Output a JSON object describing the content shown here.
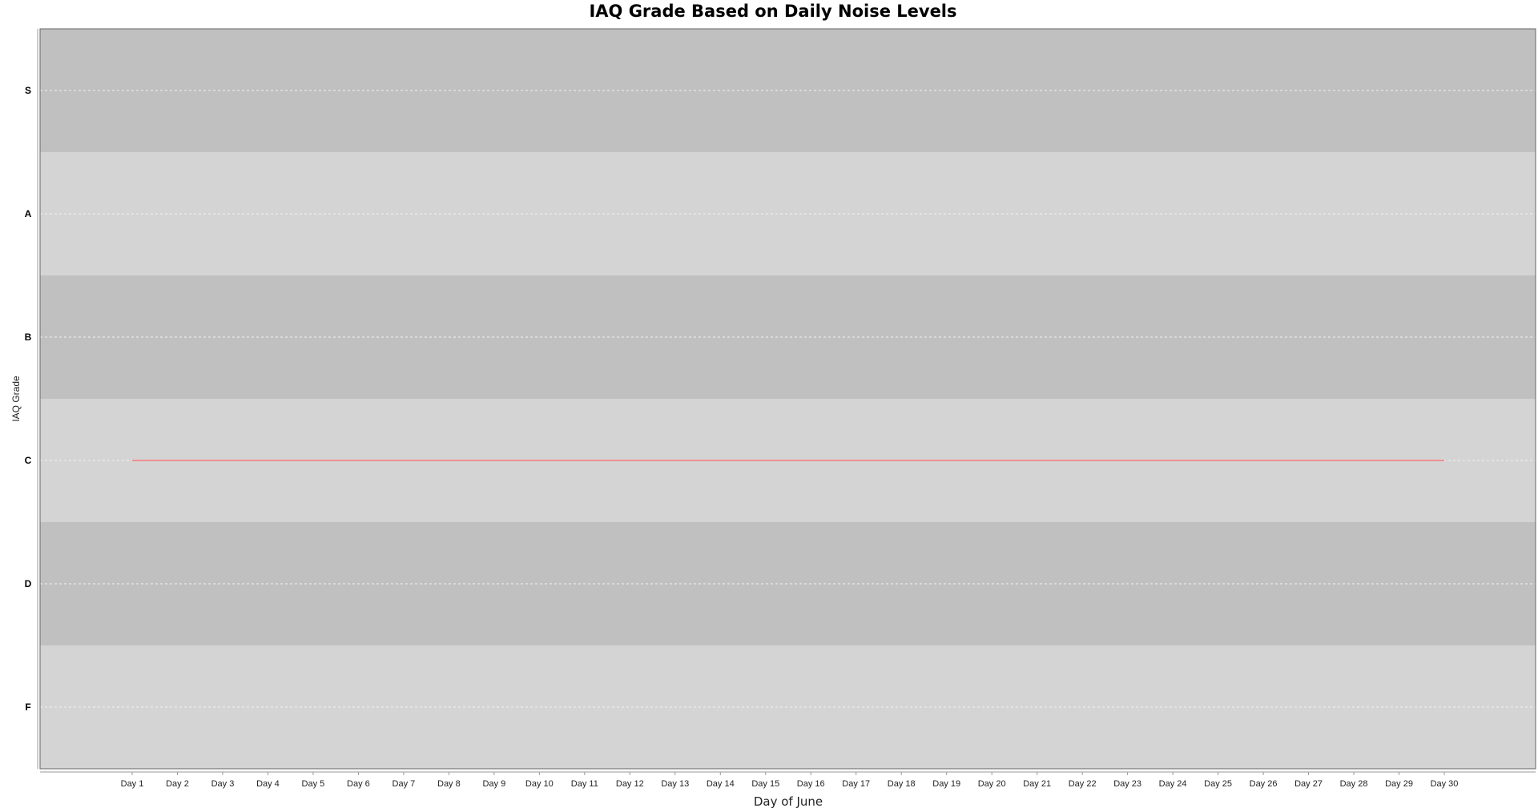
{
  "chart_data": {
    "type": "line",
    "title": "IAQ Grade Based on Daily Noise Levels",
    "xlabel": "Day of June",
    "ylabel": "IAQ Grade",
    "categories": [
      "Day 1",
      "Day 2",
      "Day 3",
      "Day 4",
      "Day 5",
      "Day 6",
      "Day 7",
      "Day 8",
      "Day 9",
      "Day 10",
      "Day 11",
      "Day 12",
      "Day 13",
      "Day 14",
      "Day 15",
      "Day 16",
      "Day 17",
      "Day 18",
      "Day 19",
      "Day 20",
      "Day 21",
      "Day 22",
      "Day 23",
      "Day 24",
      "Day 25",
      "Day 26",
      "Day 27",
      "Day 28",
      "Day 29",
      "Day 30"
    ],
    "y_categories": [
      "S",
      "A",
      "B",
      "C",
      "D",
      "F"
    ],
    "series": [
      {
        "color": "#ff6b6b",
        "values": [
          "C",
          "C",
          "C",
          "C",
          "C",
          "C",
          "C",
          "C",
          "C",
          "C",
          "C",
          "C",
          "C",
          "C",
          "C",
          "C",
          "C",
          "C",
          "C",
          "C",
          "C",
          "C",
          "C",
          "C",
          "C",
          "C",
          "C",
          "C",
          "C",
          "C"
        ]
      }
    ],
    "band_colors": [
      "#c0c0c0",
      "#d4d4d4"
    ],
    "gridlines": true,
    "legend": "none"
  }
}
